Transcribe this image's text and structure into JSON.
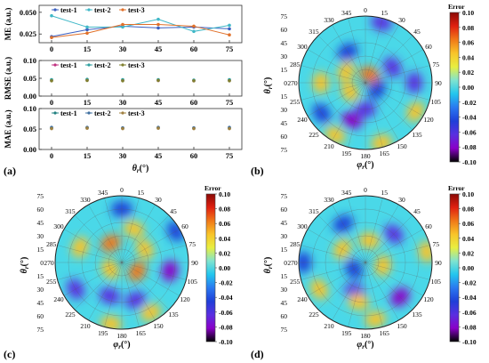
{
  "panel_labels": [
    "(a)",
    "(b)",
    "(c)",
    "(d)"
  ],
  "colorbar_title": "Error",
  "colorbar_ticks": [
    "0.10",
    "0.08",
    "0.06",
    "0.04",
    "0.02",
    "0.00",
    "-0.02",
    "-0.04",
    "-0.06",
    "-0.08",
    "-0.10"
  ],
  "colormap": [
    "#000000",
    "#8a00c8",
    "#5a2fe0",
    "#1f3fd8",
    "#2a78f0",
    "#22c6ee",
    "#7fe3d0",
    "#e8ee40",
    "#f8c42a",
    "#f07818",
    "#e02010",
    "#8a0a06"
  ],
  "polar_angle_ticks": [
    "0",
    "15",
    "30",
    "45",
    "60",
    "75",
    "90",
    "105",
    "120",
    "135",
    "150",
    "165",
    "180",
    "195",
    "210",
    "225",
    "240",
    "255",
    "270",
    "285",
    "300",
    "315",
    "330",
    "345"
  ],
  "polar_radial_ticks": [
    "75",
    "60",
    "45",
    "30",
    "15",
    "0",
    "15",
    "30",
    "45",
    "60",
    "75"
  ],
  "polar_ylabel_main": "θ",
  "polar_ylabel_sub": "r",
  "polar_ylabel_unit": "(°)",
  "polar_xlabel_main": "φ",
  "polar_xlabel_sub": "r",
  "polar_xlabel_unit": "(°)",
  "panel_a_xlabel_main": "θ",
  "panel_a_xlabel_sub": "r",
  "panel_a_xlabel_unit": "(°)",
  "chart_data": [
    {
      "type": "line",
      "ylabel": "ME (a.u.)",
      "categories": [
        "0",
        "15",
        "30",
        "45",
        "60",
        "75"
      ],
      "ylim": [
        0.015,
        0.058
      ],
      "yticks": [
        "0.050",
        "0.025"
      ],
      "series": [
        {
          "name": "test-1",
          "color": "#3a5fc0",
          "values": [
            0.022,
            0.03,
            0.034,
            0.032,
            0.033,
            0.031
          ]
        },
        {
          "name": "test-2",
          "color": "#40b8c8",
          "values": [
            0.046,
            0.033,
            0.033,
            0.042,
            0.028,
            0.035
          ]
        },
        {
          "name": "test-3",
          "color": "#e0702a",
          "values": [
            0.021,
            0.026,
            0.036,
            0.036,
            0.034,
            0.024
          ]
        }
      ]
    },
    {
      "type": "scatter",
      "ylabel": "RMSE (a.u.)",
      "categories": [
        "0",
        "15",
        "30",
        "45",
        "60",
        "75"
      ],
      "ylim": [
        0.0,
        0.1
      ],
      "yticks": [
        "0.10",
        "0.05",
        "0.00"
      ],
      "series": [
        {
          "name": "test-1",
          "color": "#c03080",
          "values": [
            0.044,
            0.045,
            0.044,
            0.044,
            0.043,
            0.044
          ]
        },
        {
          "name": "test-2",
          "color": "#2fa0a0",
          "values": [
            0.046,
            0.047,
            0.046,
            0.046,
            0.045,
            0.046
          ]
        },
        {
          "name": "test-3",
          "color": "#808030",
          "values": [
            0.043,
            0.044,
            0.043,
            0.044,
            0.043,
            0.043
          ]
        }
      ]
    },
    {
      "type": "scatter",
      "ylabel": "MAE (a.u.)",
      "categories": [
        "0",
        "15",
        "30",
        "45",
        "60",
        "75"
      ],
      "ylim": [
        0.0,
        0.1
      ],
      "yticks": [
        "0.10",
        "0.05",
        "0.00"
      ],
      "series": [
        {
          "name": "test-1",
          "color": "#208080",
          "values": [
            0.052,
            0.053,
            0.052,
            0.053,
            0.052,
            0.052
          ]
        },
        {
          "name": "test-2",
          "color": "#4070a0",
          "values": [
            0.054,
            0.054,
            0.053,
            0.054,
            0.053,
            0.054
          ]
        },
        {
          "name": "test-3",
          "color": "#a08040",
          "values": [
            0.051,
            0.052,
            0.051,
            0.052,
            0.051,
            0.051
          ]
        }
      ]
    },
    {
      "type": "heatmap",
      "panel": "(b)",
      "colorbar_range": [
        -0.1,
        0.1
      ],
      "blobs": [
        {
          "theta": 10,
          "phi": 30,
          "value": 0.06
        },
        {
          "theta": 25,
          "phi": 300,
          "value": 0.05
        },
        {
          "theta": 45,
          "phi": 200,
          "value": -0.08
        },
        {
          "theta": 30,
          "phi": 180,
          "value": -0.07
        },
        {
          "theta": 55,
          "phi": 90,
          "value": -0.06
        },
        {
          "theta": 65,
          "phi": 120,
          "value": 0.05
        },
        {
          "theta": 60,
          "phi": 235,
          "value": -0.05
        },
        {
          "theta": 40,
          "phi": 330,
          "value": -0.05
        },
        {
          "theta": 70,
          "phi": 15,
          "value": -0.06
        },
        {
          "theta": 35,
          "phi": 60,
          "value": -0.06
        },
        {
          "theta": 70,
          "phi": 165,
          "value": 0.04
        },
        {
          "theta": 15,
          "phi": 120,
          "value": -0.04
        },
        {
          "theta": 50,
          "phi": 270,
          "value": 0.05
        },
        {
          "theta": 68,
          "phi": 210,
          "value": 0.04
        },
        {
          "theta": 20,
          "phi": 240,
          "value": 0.04
        }
      ]
    },
    {
      "type": "heatmap",
      "panel": "(c)",
      "colorbar_range": [
        -0.1,
        0.1
      ],
      "blobs": [
        {
          "theta": 25,
          "phi": 330,
          "value": 0.06
        },
        {
          "theta": 40,
          "phi": 20,
          "value": 0.05
        },
        {
          "theta": 55,
          "phi": 100,
          "value": -0.08
        },
        {
          "theta": 40,
          "phi": 200,
          "value": -0.07
        },
        {
          "theta": 60,
          "phi": 240,
          "value": -0.06
        },
        {
          "theta": 20,
          "phi": 120,
          "value": 0.06
        },
        {
          "theta": 65,
          "phi": 150,
          "value": 0.05
        },
        {
          "theta": 50,
          "phi": 290,
          "value": 0.05
        },
        {
          "theta": 30,
          "phi": 60,
          "value": 0.04
        },
        {
          "theta": 70,
          "phi": 60,
          "value": -0.05
        },
        {
          "theta": 15,
          "phi": 240,
          "value": 0.05
        },
        {
          "theta": 70,
          "phi": 190,
          "value": 0.04
        },
        {
          "theta": 45,
          "phi": 160,
          "value": -0.06
        },
        {
          "theta": 60,
          "phi": 0,
          "value": -0.04
        }
      ]
    },
    {
      "type": "heatmap",
      "panel": "(d)",
      "colorbar_range": [
        -0.1,
        0.1
      ],
      "blobs": [
        {
          "theta": 30,
          "phi": 300,
          "value": 0.05
        },
        {
          "theta": 45,
          "phi": 45,
          "value": -0.07
        },
        {
          "theta": 55,
          "phi": 135,
          "value": -0.08
        },
        {
          "theta": 35,
          "phi": 200,
          "value": -0.06
        },
        {
          "theta": 60,
          "phi": 240,
          "value": 0.05
        },
        {
          "theta": 20,
          "phi": 100,
          "value": 0.05
        },
        {
          "theta": 65,
          "phi": 170,
          "value": 0.04
        },
        {
          "theta": 50,
          "phi": 330,
          "value": -0.05
        },
        {
          "theta": 25,
          "phi": 10,
          "value": 0.04
        },
        {
          "theta": 70,
          "phi": 80,
          "value": 0.04
        },
        {
          "theta": 15,
          "phi": 240,
          "value": -0.05
        },
        {
          "theta": 70,
          "phi": 270,
          "value": -0.04
        },
        {
          "theta": 45,
          "phi": 190,
          "value": 0.05
        }
      ]
    }
  ]
}
